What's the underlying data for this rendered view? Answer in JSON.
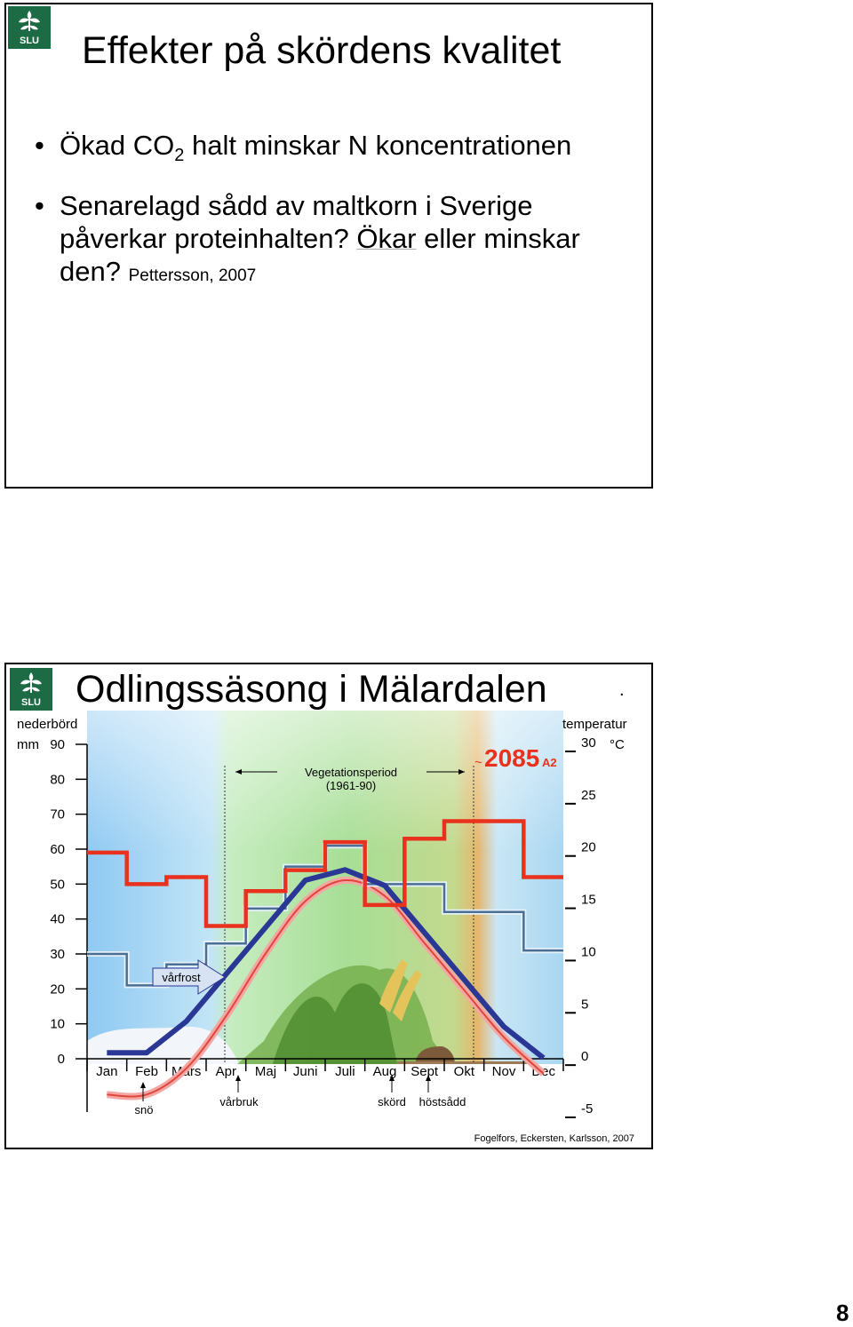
{
  "slide1": {
    "title": "Effekter på skördens kvalitet",
    "bullet1": {
      "before": "Ökad CO",
      "sub": "2",
      "after": " halt minskar N koncentrationen"
    },
    "bullet2": {
      "line1": "Senarelagd sådd av maltkorn i Sverige",
      "line2_before": "påverkar proteinhalten? ",
      "line2_underlined": "Ökar",
      "line2_after": " eller minskar",
      "line3": "den?",
      "reference": "Pettersson, 2007"
    },
    "logo_text": "SLU"
  },
  "slide2": {
    "title": "Odlingssäsong i Mälardalen",
    "dot": ".",
    "logo_text": "SLU",
    "chart_data": {
      "type": "line",
      "x": [
        "Jan",
        "Feb",
        "Mars",
        "Apr",
        "Maj",
        "Juni",
        "Juli",
        "Aug",
        "Sept",
        "Okt",
        "Nov",
        "Dec"
      ],
      "left_axis": {
        "label_line1": "nederbörd",
        "label_line2": "mm",
        "ticks": [
          "90",
          "80",
          "70",
          "60",
          "50",
          "40",
          "30",
          "20",
          "10",
          "0"
        ],
        "ylim": [
          0,
          90
        ]
      },
      "right_axis": {
        "label": "temperatur",
        "unit": "°C",
        "ticks": [
          "30",
          "25",
          "20",
          "15",
          "10",
          "5",
          "0",
          "-5"
        ],
        "ylim": [
          -5,
          30
        ]
      },
      "series": [
        {
          "name": "nederbörd 1961-90",
          "axis": "left",
          "values": [
            30,
            21,
            27,
            33,
            43,
            55,
            61,
            50,
            50,
            42,
            42,
            31
          ]
        },
        {
          "name": "nederbörd ~2085 A2",
          "axis": "left",
          "values": [
            59,
            50,
            52,
            38,
            48,
            54,
            62,
            44,
            63,
            68,
            68,
            52
          ]
        },
        {
          "name": "temperatur ~2085 A2",
          "axis": "right",
          "values": [
            0.5,
            0.5,
            3.5,
            8,
            12.5,
            17,
            18,
            16.5,
            12,
            7.5,
            3,
            0
          ]
        },
        {
          "name": "temperatur 1961-90",
          "axis": "right",
          "values": [
            -3.5,
            -3.5,
            -1,
            4,
            10,
            15,
            17,
            15.5,
            11,
            6.5,
            2,
            -1.5
          ]
        }
      ],
      "annotations": {
        "vegetation_line1": "Vegetationsperiod",
        "vegetation_line2": "(1961-90)",
        "scenario_tilde": "~",
        "scenario_year": "2085",
        "scenario_sub": "A2",
        "varfrost": "vårfrost",
        "sno": "snö",
        "varbruk": "vårbruk",
        "skord": "skörd",
        "hostsadd": "höstsådd",
        "source": "Fogelfors, Eckersten, Karlsson, 2007"
      },
      "colors": {
        "red": "#e8321e",
        "steel": "#4a6f93",
        "navy": "#2a3795",
        "pale_red": "#e85a55",
        "sky": "#b9dcf4",
        "green": "#b5e6a6",
        "amber": "#e7b86a"
      }
    }
  },
  "page_number": "8"
}
